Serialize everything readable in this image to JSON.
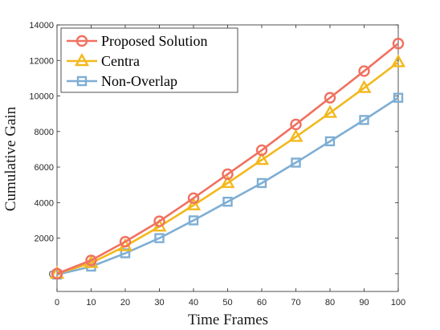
{
  "chart_data": {
    "type": "line",
    "title": "",
    "xlabel": "Time Frames",
    "ylabel": "Cumulative Gain",
    "xlim": [
      0,
      100
    ],
    "ylim": [
      -1000,
      14000
    ],
    "x": [
      0,
      10,
      20,
      30,
      40,
      50,
      60,
      70,
      80,
      90,
      100
    ],
    "x_ticks": [
      0,
      10,
      20,
      30,
      40,
      50,
      60,
      70,
      80,
      90,
      100
    ],
    "y_ticks": [
      0,
      2000,
      4000,
      6000,
      8000,
      10000,
      12000,
      14000
    ],
    "grid": false,
    "legend_position": "top-left",
    "series": [
      {
        "name": "Proposed Solution",
        "color": "#f07160",
        "marker": "circle",
        "values": [
          0,
          750,
          1800,
          2950,
          4250,
          5600,
          6950,
          8400,
          9900,
          11400,
          12950
        ]
      },
      {
        "name": "Centra",
        "color": "#f2b81d",
        "marker": "triangle",
        "values": [
          0,
          600,
          1550,
          2650,
          3850,
          5100,
          6400,
          7700,
          9050,
          10450,
          11900
        ]
      },
      {
        "name": "Non-Overlap",
        "color": "#7eaed4",
        "marker": "square",
        "values": [
          -50,
          400,
          1150,
          2000,
          3000,
          4050,
          5100,
          6250,
          7450,
          8650,
          9900
        ]
      }
    ]
  }
}
